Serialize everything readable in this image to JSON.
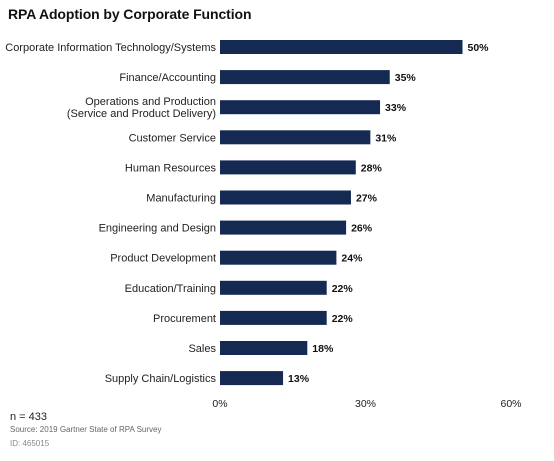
{
  "chart_data": {
    "type": "bar",
    "orientation": "horizontal",
    "title": "RPA Adoption by Corporate Function",
    "categories": [
      "Corporate Information Technology/Systems",
      "Finance/Accounting",
      "Operations and Production\n(Service and Product Delivery)",
      "Customer Service",
      "Human Resources",
      "Manufacturing",
      "Engineering and Design",
      "Product Development",
      "Education/Training",
      "Procurement",
      "Sales",
      "Supply Chain/Logistics"
    ],
    "values": [
      50,
      35,
      33,
      31,
      28,
      27,
      26,
      24,
      22,
      22,
      18,
      13
    ],
    "value_labels": [
      "50%",
      "35%",
      "33%",
      "31%",
      "28%",
      "27%",
      "26%",
      "24%",
      "22%",
      "22%",
      "18%",
      "13%"
    ],
    "xlim": [
      0,
      60
    ],
    "xticks": [
      0,
      30,
      60
    ],
    "xtick_labels": [
      "0%",
      "30%",
      "60%"
    ],
    "xlabel": "",
    "ylabel": "",
    "grid": false,
    "legend": "none",
    "bar_color": "#152a52"
  },
  "footer": {
    "n": "n = 433",
    "source": "Source: 2019 Gartner State of RPA Survey",
    "id": "ID: 465015"
  }
}
